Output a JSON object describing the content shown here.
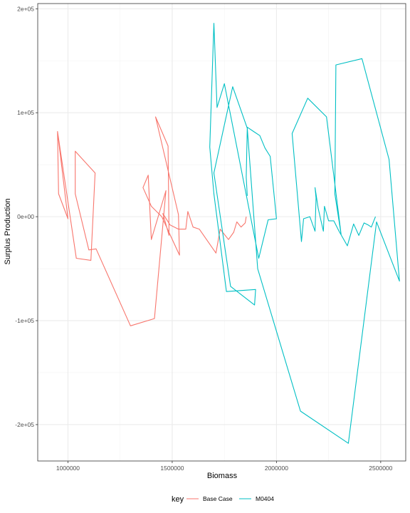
{
  "chart_data": {
    "type": "line",
    "xlabel": "Biomass",
    "ylabel": "Surplus Production",
    "xlim": [
      855000,
      2620000
    ],
    "ylim": [
      -235000,
      205000
    ],
    "x_ticks": [
      1000000,
      1500000,
      2000000,
      2500000
    ],
    "x_tick_labels": [
      "1000000",
      "1500000",
      "2000000",
      "2500000"
    ],
    "y_ticks": [
      -200000,
      -100000,
      0,
      100000,
      200000
    ],
    "y_tick_labels": [
      "-2e+05",
      "-1e+05",
      "0e+00",
      "1e+05",
      "2e+05"
    ],
    "grid": true,
    "legend_position": "bottom",
    "legend_title": "key",
    "series": [
      {
        "name": "Base Case",
        "color": "#F8766D",
        "points": [
          [
            950000,
            82000
          ],
          [
            955000,
            22000
          ],
          [
            1000000,
            -2000
          ],
          [
            950000,
            82000
          ],
          [
            1040000,
            -40000
          ],
          [
            1110000,
            -42000
          ],
          [
            1130000,
            42000
          ],
          [
            1035000,
            63000
          ],
          [
            1035000,
            22000
          ],
          [
            1100000,
            -32000
          ],
          [
            1135000,
            -31000
          ],
          [
            1300000,
            -105000
          ],
          [
            1415000,
            -98000
          ],
          [
            1470000,
            25000
          ],
          [
            1400000,
            -22000
          ],
          [
            1385000,
            40000
          ],
          [
            1360000,
            28000
          ],
          [
            1400000,
            10000
          ],
          [
            1450000,
            0
          ],
          [
            1535000,
            -37000
          ],
          [
            1530000,
            2000
          ],
          [
            1420000,
            96000
          ],
          [
            1480000,
            68000
          ],
          [
            1485000,
            -18000
          ],
          [
            1455000,
            3000
          ],
          [
            1490000,
            -8000
          ],
          [
            1530000,
            -12000
          ],
          [
            1565000,
            -12000
          ],
          [
            1575000,
            5000
          ],
          [
            1600000,
            -10000
          ],
          [
            1630000,
            -12000
          ],
          [
            1710000,
            -35000
          ],
          [
            1730000,
            -12000
          ],
          [
            1770000,
            -22000
          ],
          [
            1795000,
            -15000
          ],
          [
            1810000,
            -5000
          ],
          [
            1830000,
            -10000
          ],
          [
            1850000,
            -6000
          ],
          [
            1855000,
            0
          ]
        ]
      },
      {
        "name": "M0404",
        "color": "#00BFC4",
        "points": [
          [
            1860000,
            20000
          ],
          [
            1855000,
            38000
          ],
          [
            1860000,
            86000
          ],
          [
            1890000,
            82000
          ],
          [
            1920000,
            78000
          ],
          [
            1945000,
            66000
          ],
          [
            1970000,
            58000
          ],
          [
            2000000,
            -2000
          ],
          [
            1960000,
            -3000
          ],
          [
            1915000,
            -40000
          ],
          [
            1750000,
            128000
          ],
          [
            1715000,
            105000
          ],
          [
            1700000,
            186000
          ],
          [
            1680000,
            67000
          ],
          [
            1700000,
            22000
          ],
          [
            1760000,
            -72000
          ],
          [
            1900000,
            -70000
          ],
          [
            1895000,
            -85000
          ],
          [
            1780000,
            -67000
          ],
          [
            1700000,
            42000
          ],
          [
            1790000,
            125000
          ],
          [
            1860000,
            85000
          ],
          [
            1910000,
            -50000
          ],
          [
            2115000,
            -187000
          ],
          [
            2345000,
            -218000
          ],
          [
            2480000,
            -5000
          ],
          [
            2590000,
            -62000
          ],
          [
            2540000,
            55000
          ],
          [
            2410000,
            152000
          ],
          [
            2285000,
            146000
          ],
          [
            2280000,
            22000
          ],
          [
            2310000,
            -17000
          ],
          [
            2240000,
            96000
          ],
          [
            2150000,
            114000
          ],
          [
            2075000,
            80000
          ],
          [
            2120000,
            -24000
          ],
          [
            2130000,
            -2000
          ],
          [
            2160000,
            0
          ],
          [
            2185000,
            -14000
          ],
          [
            2190000,
            18000
          ],
          [
            2185000,
            28000
          ],
          [
            2200000,
            8000
          ],
          [
            2225000,
            -14000
          ],
          [
            2230000,
            10000
          ],
          [
            2250000,
            -4000
          ],
          [
            2275000,
            -4000
          ],
          [
            2300000,
            -14000
          ],
          [
            2340000,
            -28000
          ],
          [
            2370000,
            -7000
          ],
          [
            2395000,
            -18000
          ],
          [
            2420000,
            -6000
          ],
          [
            2440000,
            -8000
          ],
          [
            2455000,
            -10000
          ],
          [
            2475000,
            0
          ]
        ]
      }
    ]
  }
}
